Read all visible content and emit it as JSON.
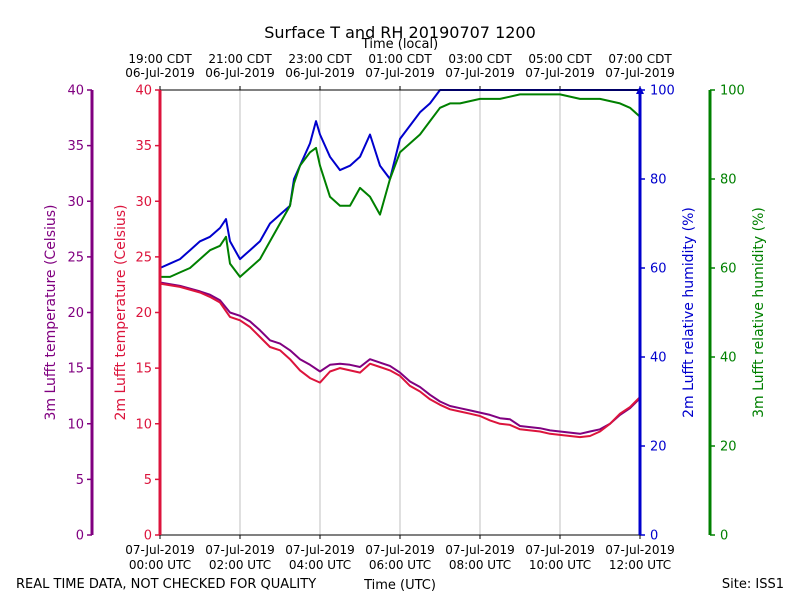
{
  "chart_data": {
    "type": "line",
    "title": "Surface T and RH 20190707 1200",
    "top_axis_label": "Time (local)",
    "xlabel": "Time (UTC)",
    "footer_left": "REAL TIME DATA, NOT CHECKED FOR QUALITY",
    "footer_right": "Site: ISS1",
    "x_range_hours": [
      0,
      12
    ],
    "x_ticks_bottom": [
      {
        "hour": 0,
        "line1": "07-Jul-2019",
        "line2": "00:00 UTC"
      },
      {
        "hour": 2,
        "line1": "07-Jul-2019",
        "line2": "02:00 UTC"
      },
      {
        "hour": 4,
        "line1": "07-Jul-2019",
        "line2": "04:00 UTC"
      },
      {
        "hour": 6,
        "line1": "07-Jul-2019",
        "line2": "06:00 UTC"
      },
      {
        "hour": 8,
        "line1": "07-Jul-2019",
        "line2": "08:00 UTC"
      },
      {
        "hour": 10,
        "line1": "07-Jul-2019",
        "line2": "10:00 UTC"
      },
      {
        "hour": 12,
        "line1": "07-Jul-2019",
        "line2": "12:00 UTC"
      }
    ],
    "x_ticks_top": [
      {
        "hour": 0,
        "line1": "19:00 CDT",
        "line2": "06-Jul-2019"
      },
      {
        "hour": 2,
        "line1": "21:00 CDT",
        "line2": "06-Jul-2019"
      },
      {
        "hour": 4,
        "line1": "23:00 CDT",
        "line2": "06-Jul-2019"
      },
      {
        "hour": 6,
        "line1": "01:00 CDT",
        "line2": "07-Jul-2019"
      },
      {
        "hour": 8,
        "line1": "03:00 CDT",
        "line2": "07-Jul-2019"
      },
      {
        "hour": 10,
        "line1": "05:00 CDT",
        "line2": "07-Jul-2019"
      },
      {
        "hour": 12,
        "line1": "07:00 CDT",
        "line2": "07-Jul-2019"
      }
    ],
    "axes": {
      "t3m": {
        "label": "3m Lufft temperature (Celsius)",
        "ylim": [
          0,
          40
        ],
        "ticks": [
          0,
          5,
          10,
          15,
          20,
          25,
          30,
          35,
          40
        ],
        "color": "#800080"
      },
      "t2m": {
        "label": "2m Lufft temperature (Celsius)",
        "ylim": [
          0,
          40
        ],
        "ticks": [
          0,
          5,
          10,
          15,
          20,
          25,
          30,
          35,
          40
        ],
        "color": "#dc143c"
      },
      "rh2m": {
        "label": "2m Lufft relative humidity (%)",
        "ylim": [
          0,
          100
        ],
        "ticks": [
          0,
          20,
          40,
          60,
          80,
          100
        ],
        "color": "#0000cd"
      },
      "rh3m": {
        "label": "3m Lufft relative humidity (%)",
        "ylim": [
          0,
          100
        ],
        "ticks": [
          0,
          20,
          40,
          60,
          80,
          100
        ],
        "color": "#008000"
      }
    },
    "series": [
      {
        "name": "3m Lufft temperature",
        "axis": "t3m",
        "color": "#800080",
        "x": [
          0,
          0.5,
          1,
          1.25,
          1.5,
          1.75,
          2,
          2.25,
          2.5,
          2.75,
          3,
          3.25,
          3.5,
          3.75,
          4,
          4.25,
          4.5,
          4.75,
          5,
          5.25,
          5.5,
          5.75,
          6,
          6.25,
          6.5,
          6.75,
          7,
          7.25,
          7.5,
          7.75,
          8,
          8.25,
          8.5,
          8.75,
          9,
          9.25,
          9.5,
          9.75,
          10,
          10.25,
          10.5,
          10.75,
          11,
          11.25,
          11.5,
          11.75,
          12
        ],
        "values": [
          22.7,
          22.4,
          21.9,
          21.6,
          21.1,
          20.0,
          19.7,
          19.2,
          18.4,
          17.5,
          17.2,
          16.6,
          15.8,
          15.3,
          14.7,
          15.3,
          15.4,
          15.3,
          15.1,
          15.8,
          15.5,
          15.2,
          14.6,
          13.8,
          13.3,
          12.6,
          12.0,
          11.6,
          11.4,
          11.2,
          11.0,
          10.8,
          10.5,
          10.4,
          9.8,
          9.7,
          9.6,
          9.4,
          9.3,
          9.2,
          9.1,
          9.3,
          9.5,
          10.0,
          10.8,
          11.4,
          12.3
        ]
      },
      {
        "name": "2m Lufft temperature",
        "axis": "t2m",
        "color": "#dc143c",
        "x": [
          0,
          0.5,
          1,
          1.25,
          1.5,
          1.75,
          2,
          2.25,
          2.5,
          2.75,
          3,
          3.25,
          3.5,
          3.75,
          4,
          4.25,
          4.5,
          4.75,
          5,
          5.25,
          5.5,
          5.75,
          6,
          6.25,
          6.5,
          6.75,
          7,
          7.25,
          7.5,
          7.75,
          8,
          8.25,
          8.5,
          8.75,
          9,
          9.25,
          9.5,
          9.75,
          10,
          10.25,
          10.5,
          10.75,
          11,
          11.25,
          11.5,
          11.75,
          12
        ],
        "values": [
          22.6,
          22.3,
          21.8,
          21.4,
          20.9,
          19.6,
          19.3,
          18.7,
          17.8,
          16.9,
          16.6,
          15.8,
          14.8,
          14.1,
          13.7,
          14.7,
          15.0,
          14.8,
          14.6,
          15.4,
          15.1,
          14.8,
          14.3,
          13.4,
          12.9,
          12.2,
          11.7,
          11.3,
          11.1,
          10.9,
          10.7,
          10.3,
          10.0,
          9.9,
          9.5,
          9.4,
          9.3,
          9.1,
          9.0,
          8.9,
          8.8,
          8.9,
          9.3,
          10.0,
          10.9,
          11.5,
          12.4
        ]
      },
      {
        "name": "2m Lufft relative humidity",
        "axis": "rh2m",
        "color": "#0000cd",
        "x": [
          0,
          0.25,
          0.5,
          0.75,
          1,
          1.25,
          1.5,
          1.65,
          1.75,
          2,
          2.25,
          2.5,
          2.75,
          3,
          3.25,
          3.35,
          3.5,
          3.75,
          3.9,
          4,
          4.25,
          4.5,
          4.75,
          5,
          5.25,
          5.5,
          5.75,
          6,
          6.25,
          6.5,
          6.75,
          7,
          7.5,
          8,
          12
        ],
        "values": [
          60,
          61,
          62,
          64,
          66,
          67,
          69,
          71,
          66,
          62,
          64,
          66,
          70,
          72,
          74,
          80,
          83,
          88,
          93,
          90,
          85,
          82,
          83,
          85,
          90,
          83,
          80,
          89,
          92,
          95,
          97,
          100,
          100,
          100,
          100
        ]
      },
      {
        "name": "3m Lufft relative humidity",
        "axis": "rh3m",
        "color": "#008000",
        "x": [
          0,
          0.25,
          0.5,
          0.75,
          1,
          1.25,
          1.5,
          1.65,
          1.75,
          2,
          2.25,
          2.5,
          2.75,
          3,
          3.25,
          3.35,
          3.5,
          3.75,
          3.9,
          4,
          4.25,
          4.5,
          4.75,
          5,
          5.25,
          5.5,
          5.75,
          6,
          6.25,
          6.5,
          6.75,
          7,
          7.25,
          7.5,
          8,
          8.5,
          9,
          9.5,
          10,
          10.5,
          11,
          11.5,
          11.75,
          12
        ],
        "values": [
          58,
          58,
          59,
          60,
          62,
          64,
          65,
          67,
          61,
          58,
          60,
          62,
          66,
          70,
          74,
          79,
          83,
          86,
          87,
          83,
          76,
          74,
          74,
          78,
          76,
          72,
          80,
          86,
          88,
          90,
          93,
          96,
          97,
          97,
          98,
          98,
          99,
          99,
          99,
          98,
          98,
          97,
          96,
          94
        ]
      }
    ],
    "gridlines_x": true
  }
}
